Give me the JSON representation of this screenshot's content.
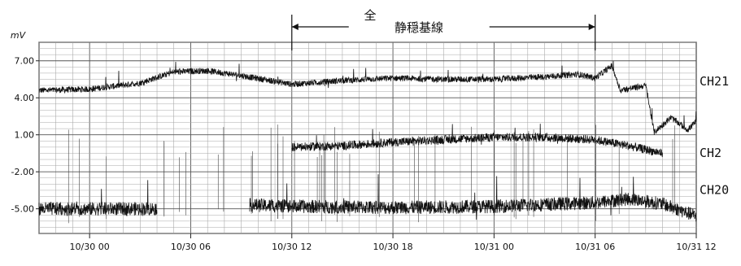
{
  "chart_data": {
    "type": "line",
    "ylabel": "mV",
    "ylim": [
      -7,
      8.5
    ],
    "y_ticks": [
      {
        "value": 7,
        "label": "7.00"
      },
      {
        "value": 4,
        "label": "4.00"
      },
      {
        "value": 1,
        "label": "1.00"
      },
      {
        "value": -2,
        "label": "-2.00"
      },
      {
        "value": -5,
        "label": "-5.00"
      }
    ],
    "x_start": "10/29 21:00",
    "x_end": "10/31 12:00",
    "x_ticks": [
      {
        "value": "10/30 00:00",
        "label": "10/30 00"
      },
      {
        "value": "10/30 06:00",
        "label": "10/30 06"
      },
      {
        "value": "10/30 12:00",
        "label": "10/30 12"
      },
      {
        "value": "10/30 18:00",
        "label": "10/30 18"
      },
      {
        "value": "10/31 00:00",
        "label": "10/31 00"
      },
      {
        "value": "10/31 06:00",
        "label": "10/31 06"
      },
      {
        "value": "10/31 12:00",
        "label": "10/31 12"
      }
    ],
    "grid": true,
    "annotation": {
      "prefix": "全",
      "text": "静穏基線",
      "from": "10/30 12:00",
      "to": "10/31 06:00"
    },
    "series": [
      {
        "name": "CH21",
        "color": "#111111",
        "points": [
          [
            "10/29 21:00",
            4.6
          ],
          [
            "10/30 00:00",
            4.7
          ],
          [
            "10/30 03:00",
            5.2
          ],
          [
            "10/30 05:00",
            6.1
          ],
          [
            "10/30 07:00",
            6.2
          ],
          [
            "10/30 09:00",
            5.8
          ],
          [
            "10/30 12:00",
            5.1
          ],
          [
            "10/30 15:00",
            5.4
          ],
          [
            "10/30 18:00",
            5.6
          ],
          [
            "10/30 21:00",
            5.5
          ],
          [
            "10/31 00:00",
            5.5
          ],
          [
            "10/31 03:00",
            5.7
          ],
          [
            "10/31 05:00",
            5.9
          ],
          [
            "10/31 06:00",
            5.6
          ],
          [
            "10/31 07:00",
            6.6
          ],
          [
            "10/31 07:30",
            4.6
          ],
          [
            "10/31 09:00",
            5.0
          ],
          [
            "10/31 09:30",
            1.2
          ],
          [
            "10/31 10:30",
            2.4
          ],
          [
            "10/31 11:30",
            1.4
          ],
          [
            "10/31 12:00",
            2.1
          ]
        ]
      },
      {
        "name": "CH2",
        "color": "#111111",
        "points": [
          [
            "10/30 12:00",
            0.0
          ],
          [
            "10/30 15:00",
            0.1
          ],
          [
            "10/30 18:00",
            0.4
          ],
          [
            "10/30 21:00",
            0.6
          ],
          [
            "10/31 00:00",
            0.8
          ],
          [
            "10/31 03:00",
            0.8
          ],
          [
            "10/31 06:00",
            0.6
          ],
          [
            "10/31 08:00",
            0.1
          ],
          [
            "10/31 10:00",
            -0.5
          ]
        ]
      },
      {
        "name": "CH20",
        "color": "#111111",
        "points": [
          [
            "10/29 21:00",
            -5.0
          ],
          [
            "10/30 03:30",
            -5.0
          ],
          [
            "10/30 09:30",
            -4.7
          ],
          [
            "10/30 12:00",
            -4.8
          ],
          [
            "10/30 18:00",
            -4.9
          ],
          [
            "10/31 00:00",
            -4.8
          ],
          [
            "10/31 06:00",
            -4.5
          ],
          [
            "10/31 08:00",
            -4.2
          ],
          [
            "10/31 10:00",
            -4.6
          ],
          [
            "10/31 12:00",
            -5.6
          ]
        ]
      }
    ]
  }
}
